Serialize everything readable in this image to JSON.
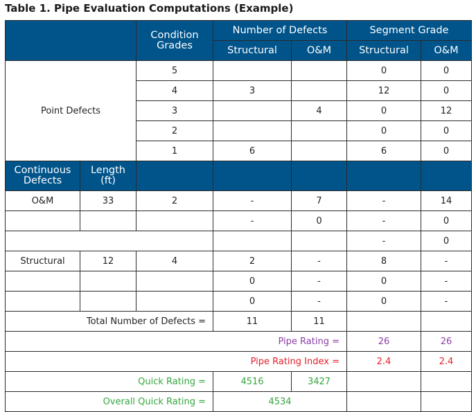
{
  "title": "Table 1. Pipe Evaluation Computations (Example)",
  "headers": {
    "condition_grades": "Condition Grades",
    "number_of_defects": "Number of Defects",
    "segment_grade": "Segment Grade",
    "structural": "Structural",
    "om": "O&M",
    "continuous_defects": "Continuous Defects",
    "length_ft": "Length (ft)"
  },
  "point_defects": {
    "label": "Point Defects",
    "rows": [
      {
        "grade": "5",
        "num_structural": "",
        "num_om": "",
        "seg_structural": "0",
        "seg_om": "0"
      },
      {
        "grade": "4",
        "num_structural": "3",
        "num_om": "",
        "seg_structural": "12",
        "seg_om": "0"
      },
      {
        "grade": "3",
        "num_structural": "",
        "num_om": "4",
        "seg_structural": "0",
        "seg_om": "12"
      },
      {
        "grade": "2",
        "num_structural": "",
        "num_om": "",
        "seg_structural": "0",
        "seg_om": "0"
      },
      {
        "grade": "1",
        "num_structural": "6",
        "num_om": "",
        "seg_structural": "6",
        "seg_om": "0"
      }
    ]
  },
  "continuous_defects": {
    "rows": [
      {
        "type": "O&M",
        "length": "33",
        "grade": "2",
        "num_structural": "-",
        "num_om": "7",
        "seg_structural": "-",
        "seg_om": "14"
      },
      {
        "type": "",
        "length": "",
        "grade": "",
        "num_structural": "-",
        "num_om": "0",
        "seg_structural": "-",
        "seg_om": "0"
      },
      {
        "seg_structural": "-",
        "seg_om": "0"
      },
      {
        "type": "Structural",
        "length": "12",
        "grade": "4",
        "num_structural": "2",
        "num_om": "-",
        "seg_structural": "8",
        "seg_om": "-"
      },
      {
        "type": "",
        "length": "",
        "grade": "",
        "num_structural": "0",
        "num_om": "-",
        "seg_structural": "0",
        "seg_om": "-"
      },
      {
        "type": "",
        "length": "",
        "grade": "",
        "num_structural": "0",
        "num_om": "-",
        "seg_structural": "0",
        "seg_om": "-"
      }
    ]
  },
  "totals": {
    "total_label": "Total Number of Defects =",
    "total_structural": "11",
    "total_om": "11",
    "pipe_rating_label": "Pipe Rating =",
    "pipe_rating_structural": "26",
    "pipe_rating_om": "26",
    "pipe_rating_index_label": "Pipe Rating Index =",
    "pipe_rating_index_structural": "2.4",
    "pipe_rating_index_om": "2.4",
    "quick_rating_label": "Quick Rating =",
    "quick_rating_structural": "4516",
    "quick_rating_om": "3427",
    "overall_quick_rating_label": "Overall Quick Rating =",
    "overall_quick_rating": "4534"
  },
  "colors": {
    "header_bg": "#00548a",
    "pipe_rating": "#8a3fa6",
    "pipe_rating_index": "#e4202b",
    "quick_rating": "#35a63e"
  }
}
